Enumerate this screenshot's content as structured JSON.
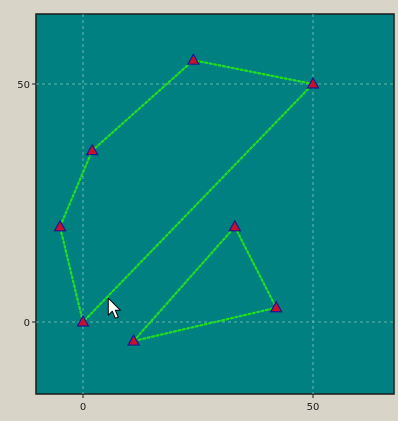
{
  "chart_data": {
    "type": "scatter",
    "x_ticks": [
      {
        "value": 0,
        "label": "0"
      },
      {
        "value": 50,
        "label": "50"
      }
    ],
    "y_ticks": [
      {
        "value": 0,
        "label": "0"
      },
      {
        "value": 50,
        "label": "50"
      }
    ],
    "xlim": [
      -10,
      68
    ],
    "ylim": [
      -15,
      65
    ],
    "grid": true,
    "colors": {
      "background": "#008080",
      "line": "#22dd22",
      "marker_fill": "#c8102e",
      "marker_stroke": "#1a1a8a",
      "grid": "#88c4c4",
      "frame": "#1a1a1a",
      "window": "#d8d4c8"
    },
    "series": [
      {
        "points": [
          {
            "x": 0,
            "y": 0
          },
          {
            "x": -5,
            "y": 20
          },
          {
            "x": 2,
            "y": 36
          },
          {
            "x": 24,
            "y": 55
          },
          {
            "x": 50,
            "y": 50
          },
          {
            "x": 0,
            "y": 0
          }
        ]
      },
      {
        "points": [
          {
            "x": 11,
            "y": -4
          },
          {
            "x": 33,
            "y": 20
          },
          {
            "x": 42,
            "y": 3
          },
          {
            "x": 11,
            "y": -4
          }
        ]
      }
    ],
    "cursor": {
      "x": 5.5,
      "y": 5,
      "icon": "arrow-cursor-icon"
    }
  }
}
